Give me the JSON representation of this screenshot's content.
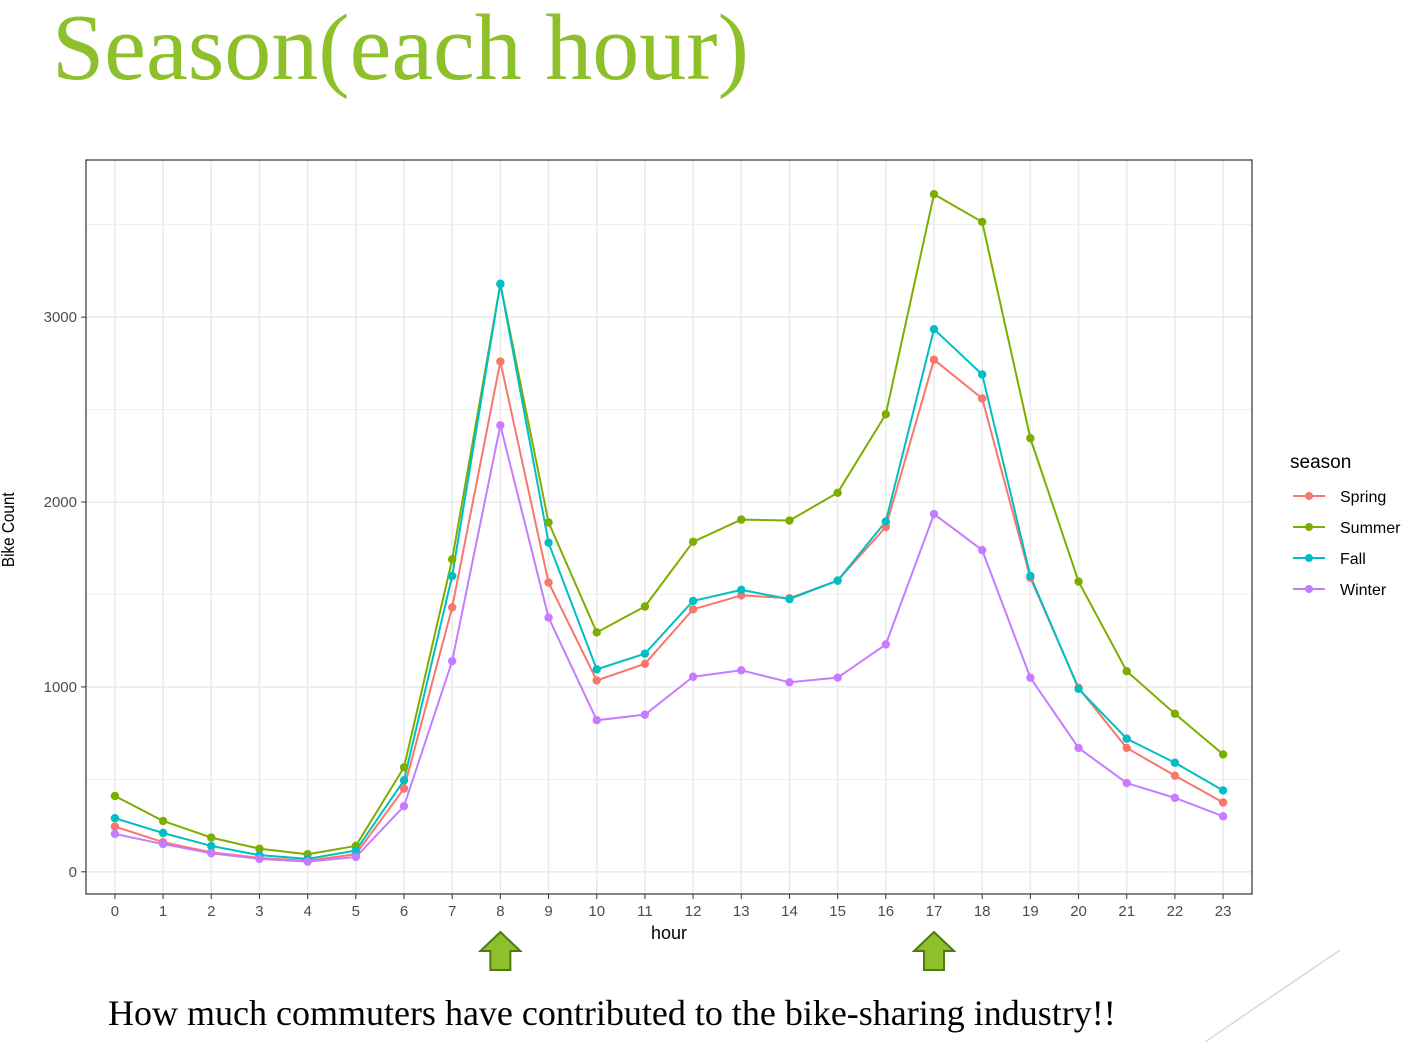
{
  "slide": {
    "title": "Season(each hour)",
    "caption": "How much commuters have contributed to the bike-sharing industry!!"
  },
  "colors": {
    "title": "#8dc02a",
    "arrow_fill": "#8dc02a",
    "arrow_stroke": "#4f7a13",
    "grid": "#ebebeb",
    "panel_border": "#333333"
  },
  "chart_data": {
    "type": "line",
    "xlabel": "hour",
    "ylabel": "Bike Count",
    "x": [
      0,
      1,
      2,
      3,
      4,
      5,
      6,
      7,
      8,
      9,
      10,
      11,
      12,
      13,
      14,
      15,
      16,
      17,
      18,
      19,
      20,
      21,
      22,
      23
    ],
    "xlim": [
      -0.6,
      23.6
    ],
    "ylim": [
      -120,
      3850
    ],
    "yticks": [
      0,
      1000,
      2000,
      3000
    ],
    "y_minor_ticks": [
      500,
      1500,
      2500,
      3500
    ],
    "grid": true,
    "legend": {
      "title": "season",
      "position": "right"
    },
    "series": [
      {
        "name": "Spring",
        "color": "#f8766d",
        "values": [
          245,
          160,
          105,
          75,
          60,
          95,
          450,
          1430,
          2760,
          1565,
          1035,
          1125,
          1420,
          1495,
          1480,
          1575,
          1865,
          2770,
          2560,
          1590,
          995,
          670,
          520,
          375
        ]
      },
      {
        "name": "Summer",
        "color": "#7cae00",
        "values": [
          410,
          275,
          185,
          125,
          95,
          140,
          565,
          1690,
          3180,
          1890,
          1295,
          1435,
          1785,
          1905,
          1900,
          2050,
          2475,
          3665,
          3515,
          2345,
          1570,
          1085,
          855,
          635
        ]
      },
      {
        "name": "Fall",
        "color": "#00bfc4",
        "values": [
          290,
          210,
          140,
          90,
          70,
          115,
          495,
          1600,
          3180,
          1780,
          1095,
          1180,
          1465,
          1525,
          1475,
          1575,
          1895,
          2935,
          2690,
          1600,
          990,
          720,
          590,
          440
        ]
      },
      {
        "name": "Winter",
        "color": "#c77cff",
        "values": [
          205,
          150,
          100,
          70,
          55,
          80,
          355,
          1140,
          2415,
          1375,
          820,
          850,
          1055,
          1090,
          1025,
          1050,
          1230,
          1935,
          1740,
          1050,
          670,
          480,
          400,
          300
        ]
      }
    ]
  },
  "annotations": {
    "arrow_hours": [
      8,
      17
    ]
  }
}
